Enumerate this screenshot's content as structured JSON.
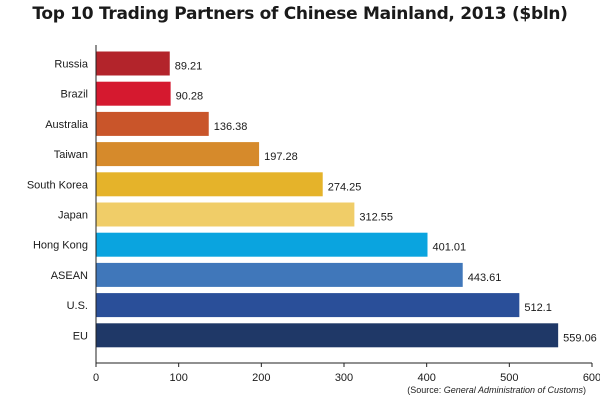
{
  "chart_data": {
    "type": "bar",
    "orientation": "horizontal",
    "title": "Top 10 Trading Partners of Chinese Mainland, 2013 ($bln)",
    "categories": [
      "Russia",
      "Brazil",
      "Australia",
      "Taiwan",
      "South Korea",
      "Japan",
      "Hong Kong",
      "ASEAN",
      "U.S.",
      "EU"
    ],
    "values": [
      89.21,
      90.28,
      136.38,
      197.28,
      274.25,
      312.55,
      401.01,
      443.61,
      512.1,
      559.06
    ],
    "value_labels": [
      "89.21",
      "90.28",
      "136.38",
      "197.28",
      "274.25",
      "312.55",
      "401.01",
      "443.61",
      "512.1",
      "559.06"
    ],
    "colors": [
      "#b3242b",
      "#d5192f",
      "#c9552a",
      "#d68a2b",
      "#e5b32a",
      "#f0cd68",
      "#0aa4df",
      "#4077ba",
      "#2a4f99",
      "#1f3867"
    ],
    "xlim": [
      0,
      600
    ],
    "xticks": [
      0,
      100,
      200,
      300,
      400,
      500,
      600
    ],
    "grid": false
  },
  "source": {
    "prefix": "(Source: ",
    "name": "General Administration of Customs",
    "suffix": ")"
  }
}
